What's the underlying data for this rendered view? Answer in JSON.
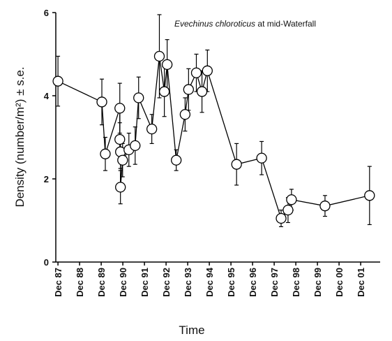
{
  "chart_data": {
    "type": "line",
    "annotation": {
      "species": "Evechinus chloroticus",
      "text": "at mid-Waterfall"
    },
    "xlabel": "Time",
    "ylabel": "Density (number/m²) ± s.e.",
    "x": [
      1988.0,
      1990.03,
      1990.19,
      1990.86,
      1990.86,
      1990.89,
      1990.89,
      1990.99,
      1991.28,
      1991.57,
      1991.73,
      1992.34,
      1992.69,
      1992.92,
      1993.05,
      1993.47,
      1993.88,
      1994.04,
      1994.4,
      1994.66,
      1994.91,
      1996.26,
      1997.42,
      1998.32,
      1998.64,
      1998.8,
      2000.35,
      2002.41
    ],
    "series": [
      {
        "color": "#000000",
        "values": [
          4.35,
          3.85,
          2.6,
          3.7,
          2.95,
          2.65,
          1.8,
          2.45,
          2.7,
          2.8,
          3.95,
          3.2,
          4.95,
          4.1,
          4.75,
          2.45,
          3.55,
          4.15,
          4.55,
          4.1,
          4.6,
          2.35,
          2.5,
          1.05,
          1.25,
          1.5,
          1.35,
          1.6
        ],
        "errors": [
          0.6,
          0.55,
          0.4,
          0.6,
          0.4,
          0.4,
          0.4,
          0.4,
          0.4,
          0.45,
          0.5,
          0.35,
          1.0,
          0.6,
          0.6,
          0.25,
          0.4,
          0.5,
          0.45,
          0.5,
          0.5,
          0.5,
          0.4,
          0.2,
          0.3,
          0.25,
          0.25,
          0.7
        ]
      }
    ],
    "xlim": [
      1987.9,
      2002.9
    ],
    "xticks": [
      {
        "value": 1988,
        "label": "Dec 87"
      },
      {
        "value": 1989,
        "label": "Dec 88"
      },
      {
        "value": 1990,
        "label": "Dec 89"
      },
      {
        "value": 1991,
        "label": "Dec 90"
      },
      {
        "value": 1992,
        "label": "Dec 91"
      },
      {
        "value": 1993,
        "label": "Dec 92"
      },
      {
        "value": 1994,
        "label": "Dec 93"
      },
      {
        "value": 1995,
        "label": "Dec 94"
      },
      {
        "value": 1996,
        "label": "Dec 95"
      },
      {
        "value": 1997,
        "label": "Dec 96"
      },
      {
        "value": 1998,
        "label": "Dec 97"
      },
      {
        "value": 1999,
        "label": "Dec 98"
      },
      {
        "value": 2000,
        "label": "Dec 99"
      },
      {
        "value": 2001,
        "label": "Dec 00"
      },
      {
        "value": 2002,
        "label": "Dec 01"
      }
    ],
    "ylim": [
      0,
      6
    ],
    "yticks": [
      0,
      2,
      4,
      6
    ]
  }
}
